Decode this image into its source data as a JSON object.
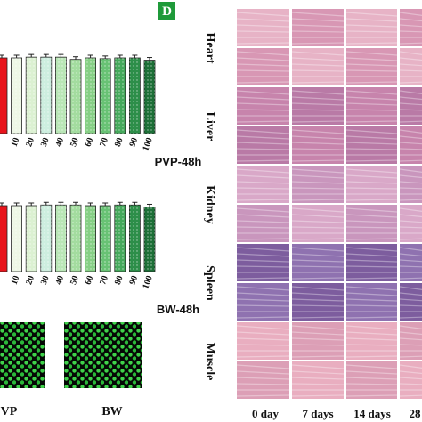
{
  "chart_data": [
    {
      "type": "bar",
      "title": "PVP-48h",
      "categories": [
        null,
        "10",
        "20",
        "30",
        "40",
        "50",
        "60",
        "70",
        "80",
        "90",
        "100"
      ],
      "values": [
        100,
        100,
        101,
        101,
        101,
        98,
        100,
        99,
        100,
        100,
        97
      ],
      "colors": [
        "#e8141c",
        "#eef7e6",
        "#dcf1d2",
        "#cdeedf",
        "#b9e6b6",
        "#a3dc9f",
        "#86cf85",
        "#68c274",
        "#45a95c",
        "#2d8e49",
        "#1d6f37"
      ]
    },
    {
      "type": "bar",
      "title": "BW-48h",
      "categories": [
        null,
        "10",
        "20",
        "30",
        "40",
        "50",
        "60",
        "70",
        "80",
        "90",
        "100"
      ],
      "values": [
        100,
        100,
        100,
        101,
        101,
        101,
        100,
        100,
        101,
        101,
        98
      ],
      "colors": [
        "#e8141c",
        "#eef7e6",
        "#dcf1d2",
        "#cdeedf",
        "#b9e6b6",
        "#a3dc9f",
        "#86cf85",
        "#68c274",
        "#45a95c",
        "#2d8e49",
        "#1d6f37"
      ]
    }
  ],
  "figure": {
    "panel": "D",
    "cell_images": [
      "VP",
      "BW"
    ],
    "histology": {
      "rows": [
        "Heart",
        "Liver",
        "Kidney",
        "Spleen",
        "Muscle"
      ],
      "columns": [
        "0 day",
        "7 days",
        "14 days",
        "28"
      ]
    }
  }
}
